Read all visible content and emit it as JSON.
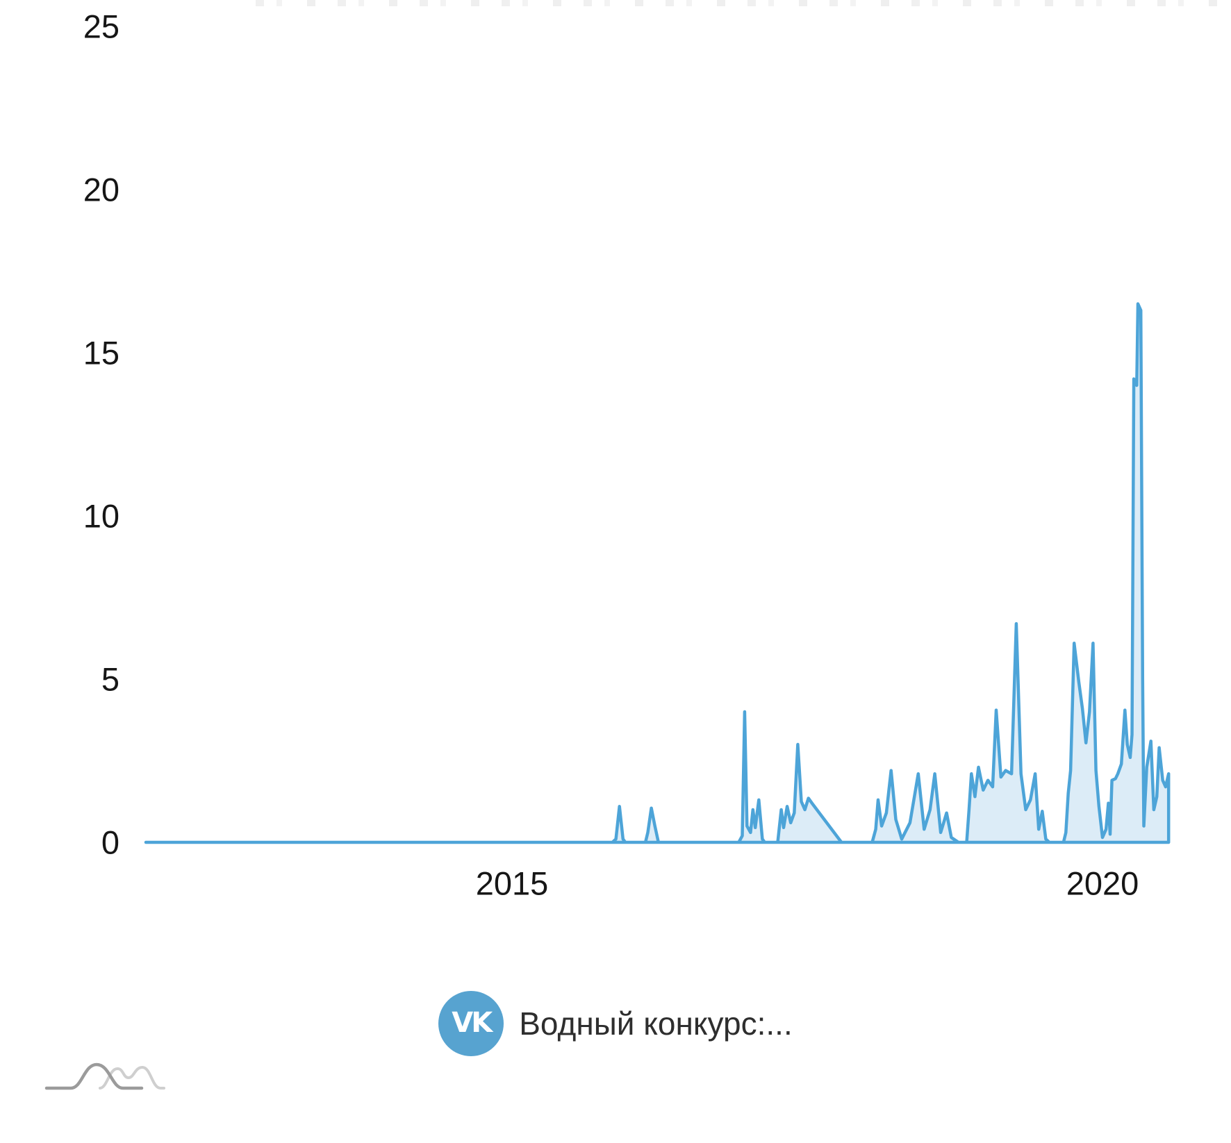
{
  "chart_data": {
    "type": "area",
    "title": "",
    "xlabel": "",
    "ylabel": "",
    "grid": false,
    "x_axis": {
      "range": [
        2011.9,
        2020.56
      ],
      "tick_values": [
        2015,
        2020
      ],
      "tick_labels": [
        "2015",
        "2020"
      ]
    },
    "y_axis": {
      "range": [
        0,
        25
      ],
      "tick_values": [
        0,
        5,
        10,
        15,
        20,
        25
      ],
      "tick_labels": [
        "0",
        "5",
        "10",
        "15",
        "20",
        "25"
      ]
    },
    "legend": {
      "position": "bottom-center",
      "items": [
        {
          "label": "Водный конкурс:...",
          "icon": "vk-logo",
          "icon_text": "VK",
          "icon_color": "#57a3d0"
        }
      ]
    },
    "series": [
      {
        "name": "Водный конкурс:...",
        "line_color": "#4da4d8",
        "fill_color": "#dcecf7",
        "points": [
          [
            2011.9,
            0
          ],
          [
            2015.85,
            0
          ],
          [
            2015.88,
            0.1
          ],
          [
            2015.91,
            1.1
          ],
          [
            2015.94,
            0.1
          ],
          [
            2015.96,
            0
          ],
          [
            2016.13,
            0
          ],
          [
            2016.15,
            0.3
          ],
          [
            2016.18,
            1.05
          ],
          [
            2016.21,
            0.5
          ],
          [
            2016.24,
            0
          ],
          [
            2016.92,
            0
          ],
          [
            2016.95,
            0.2
          ],
          [
            2016.97,
            4.0
          ],
          [
            2016.99,
            0.5
          ],
          [
            2017.02,
            0.3
          ],
          [
            2017.04,
            1.0
          ],
          [
            2017.06,
            0.45
          ],
          [
            2017.09,
            1.3
          ],
          [
            2017.12,
            0.1
          ],
          [
            2017.14,
            0
          ],
          [
            2017.25,
            0
          ],
          [
            2017.28,
            1.0
          ],
          [
            2017.3,
            0.45
          ],
          [
            2017.33,
            1.1
          ],
          [
            2017.36,
            0.6
          ],
          [
            2017.39,
            0.9
          ],
          [
            2017.42,
            3.0
          ],
          [
            2017.45,
            1.25
          ],
          [
            2017.48,
            1.0
          ],
          [
            2017.51,
            1.35
          ],
          [
            2017.54,
            1.2
          ],
          [
            2017.79,
            0
          ],
          [
            2018.05,
            0
          ],
          [
            2018.08,
            0.4
          ],
          [
            2018.1,
            1.3
          ],
          [
            2018.13,
            0.5
          ],
          [
            2018.17,
            0.9
          ],
          [
            2018.21,
            2.2
          ],
          [
            2018.25,
            0.7
          ],
          [
            2018.3,
            0.1
          ],
          [
            2018.37,
            0.6
          ],
          [
            2018.44,
            2.1
          ],
          [
            2018.49,
            0.4
          ],
          [
            2018.54,
            1.0
          ],
          [
            2018.58,
            2.1
          ],
          [
            2018.63,
            0.3
          ],
          [
            2018.68,
            0.9
          ],
          [
            2018.72,
            0.15
          ],
          [
            2018.78,
            0
          ],
          [
            2018.85,
            0
          ],
          [
            2018.87,
            1.0
          ],
          [
            2018.89,
            2.1
          ],
          [
            2018.92,
            1.4
          ],
          [
            2018.95,
            2.3
          ],
          [
            2018.99,
            1.6
          ],
          [
            2019.03,
            1.9
          ],
          [
            2019.07,
            1.7
          ],
          [
            2019.1,
            4.05
          ],
          [
            2019.14,
            2.0
          ],
          [
            2019.18,
            2.2
          ],
          [
            2019.23,
            2.1
          ],
          [
            2019.27,
            6.7
          ],
          [
            2019.31,
            2.1
          ],
          [
            2019.35,
            1.0
          ],
          [
            2019.39,
            1.3
          ],
          [
            2019.43,
            2.1
          ],
          [
            2019.46,
            0.4
          ],
          [
            2019.49,
            0.95
          ],
          [
            2019.52,
            0.1
          ],
          [
            2019.55,
            0
          ],
          [
            2019.67,
            0
          ],
          [
            2019.69,
            0.3
          ],
          [
            2019.71,
            1.5
          ],
          [
            2019.73,
            2.2
          ],
          [
            2019.76,
            6.1
          ],
          [
            2019.8,
            4.9
          ],
          [
            2019.83,
            4.1
          ],
          [
            2019.86,
            3.05
          ],
          [
            2019.89,
            4.0
          ],
          [
            2019.92,
            6.1
          ],
          [
            2019.945,
            2.2
          ],
          [
            2019.97,
            1.1
          ],
          [
            2020.0,
            0.15
          ],
          [
            2020.03,
            0.4
          ],
          [
            2020.05,
            1.2
          ],
          [
            2020.065,
            0.25
          ],
          [
            2020.08,
            1.9
          ],
          [
            2020.11,
            1.95
          ],
          [
            2020.13,
            2.1
          ],
          [
            2020.16,
            2.4
          ],
          [
            2020.19,
            4.05
          ],
          [
            2020.21,
            3.0
          ],
          [
            2020.235,
            2.6
          ],
          [
            2020.25,
            3.3
          ],
          [
            2020.265,
            14.2
          ],
          [
            2020.29,
            14.0
          ],
          [
            2020.3,
            16.5
          ],
          [
            2020.325,
            16.3
          ],
          [
            2020.34,
            5.0
          ],
          [
            2020.35,
            0.5
          ],
          [
            2020.375,
            2.3
          ],
          [
            2020.41,
            3.1
          ],
          [
            2020.435,
            1.0
          ],
          [
            2020.46,
            1.4
          ],
          [
            2020.48,
            2.9
          ],
          [
            2020.51,
            1.9
          ],
          [
            2020.535,
            1.7
          ],
          [
            2020.56,
            2.1
          ]
        ]
      }
    ]
  },
  "watermark": {
    "name": "hills-logo",
    "dark_color": "#9b9b9b",
    "light_color": "#cfcfcf"
  },
  "decor": {
    "top_clipped_row": true
  }
}
